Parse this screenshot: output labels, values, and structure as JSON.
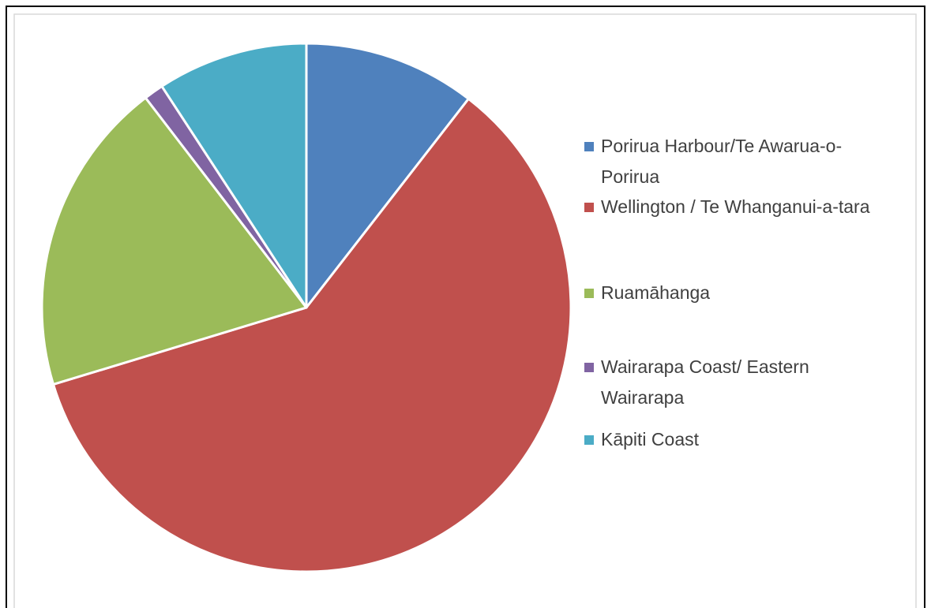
{
  "chart_data": {
    "type": "pie",
    "categories": [
      "Porirua Harbour/Te Awarua-o-Porirua",
      "Wellington / Te Whanganui-a-tara",
      "Ruamāhanga",
      "Wairarapa Coast/ Eastern Wairarapa",
      "Kāpiti Coast"
    ],
    "values": [
      10.5,
      59.8,
      19.3,
      1.2,
      9.2
    ],
    "colors": [
      "#4f81bd",
      "#c0504d",
      "#9bbb59",
      "#8064a2",
      "#4bacc6"
    ],
    "legend": "right"
  }
}
